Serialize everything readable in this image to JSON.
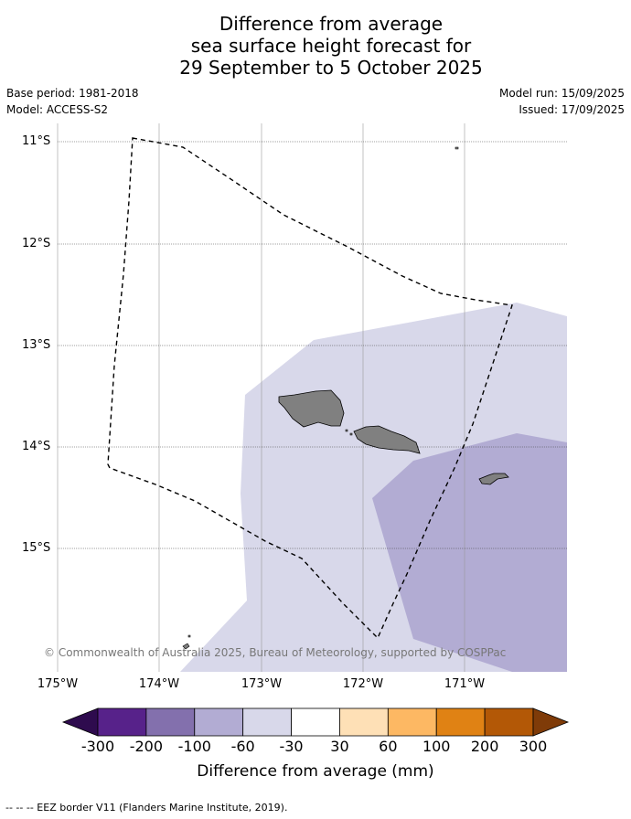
{
  "title_lines": [
    "Difference from average",
    "sea surface height forecast for",
    "29 September to 5 October 2025"
  ],
  "meta": {
    "base_period": "Base period: 1981-2018",
    "model": "Model: ACCESS-S2",
    "model_run": "Model run: 15/09/2025",
    "issued": "Issued: 17/09/2025"
  },
  "map": {
    "lat_labels": [
      "11°S",
      "12°S",
      "13°S",
      "14°S",
      "15°S"
    ],
    "lon_labels": [
      "175°W",
      "174°W",
      "173°W",
      "172°W",
      "171°W"
    ],
    "lat_range": [
      -16.2,
      -10.9
    ],
    "lon_range": [
      -175.0,
      -170.0
    ],
    "band_colors": {
      "-60_-30": "#d8d8ea",
      "-100_-60": "#b2acd3"
    },
    "land_color": "#808080",
    "copyright": "© Commonwealth of Australia 2025, Bureau of Meteorology, supported by COSPPac"
  },
  "colorbar": {
    "labels": [
      "-300",
      "-200",
      "-100",
      "-60",
      "-30",
      "30",
      "60",
      "100",
      "200",
      "300"
    ],
    "colors": [
      "#2e0b4e",
      "#57228a",
      "#8370ad",
      "#b2acd3",
      "#d8d8ea",
      "#ffffff",
      "#fee0b6",
      "#fdb863",
      "#e08214",
      "#b35806",
      "#7f3b08"
    ],
    "title": "Difference from average (mm)"
  },
  "footnote": "--  --  -- EEZ border V11 (Flanders Marine Institute, 2019)."
}
